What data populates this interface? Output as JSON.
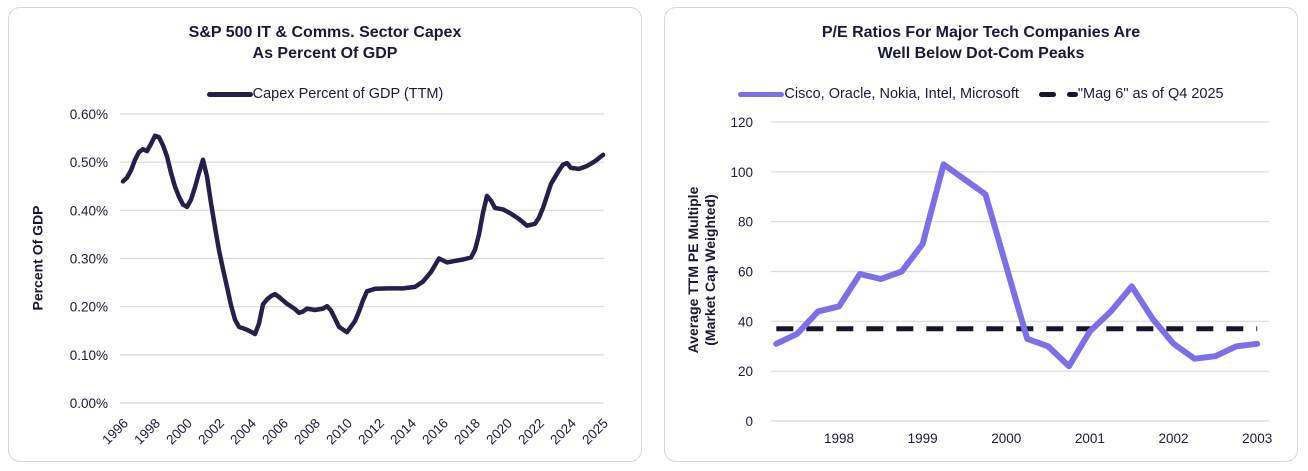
{
  "colors": {
    "navy_line": "#23214a",
    "purple_line": "#7d6ee9",
    "dashed_line": "#16152e",
    "text": "#1b1a3a",
    "gridline": "#d9d9d9",
    "card_border": "#d7d7dd",
    "card_background": "#ffffff"
  },
  "chart_data": [
    {
      "type": "line",
      "title_lines": [
        "S&P 500 IT & Comms. Sector Capex",
        "As Percent Of GDP"
      ],
      "title": "S&P 500 IT & Comms. Sector Capex As Percent Of GDP",
      "ylabel_lines": [
        "Percent Of GDP"
      ],
      "ylabel": "Percent Of GDP",
      "xlabel": "",
      "grid": true,
      "legend_position": "top",
      "ylim": [
        0,
        0.6
      ],
      "y_tick_labels": [
        "0.00%",
        "0.10%",
        "0.20%",
        "0.30%",
        "0.40%",
        "0.50%",
        "0.60%"
      ],
      "x_tick_labels": [
        "1996",
        "1998",
        "2000",
        "2002",
        "2004",
        "2006",
        "2008",
        "2010",
        "2012",
        "2014",
        "2016",
        "2018",
        "2020",
        "2022",
        "2024",
        "2025"
      ],
      "series": [
        {
          "name": "Capex Percent of GDP (TTM)",
          "color": "#23214a",
          "style": "solid",
          "points": [
            [
              1996,
              0.46
            ],
            [
              1996.25,
              0.468
            ],
            [
              1996.5,
              0.483
            ],
            [
              1996.75,
              0.505
            ],
            [
              1997,
              0.521
            ],
            [
              1997.25,
              0.527
            ],
            [
              1997.5,
              0.523
            ],
            [
              1997.75,
              0.538
            ],
            [
              1998,
              0.555
            ],
            [
              1998.25,
              0.552
            ],
            [
              1998.5,
              0.535
            ],
            [
              1998.75,
              0.512
            ],
            [
              1999,
              0.478
            ],
            [
              1999.25,
              0.449
            ],
            [
              1999.5,
              0.428
            ],
            [
              1999.75,
              0.412
            ],
            [
              2000,
              0.407
            ],
            [
              2000.25,
              0.422
            ],
            [
              2000.5,
              0.448
            ],
            [
              2000.75,
              0.478
            ],
            [
              2001,
              0.505
            ],
            [
              2001.25,
              0.47
            ],
            [
              2001.5,
              0.415
            ],
            [
              2001.75,
              0.365
            ],
            [
              2002,
              0.317
            ],
            [
              2002.25,
              0.278
            ],
            [
              2002.5,
              0.241
            ],
            [
              2002.75,
              0.203
            ],
            [
              2003,
              0.173
            ],
            [
              2003.25,
              0.158
            ],
            [
              2003.5,
              0.155
            ],
            [
              2003.75,
              0.152
            ],
            [
              2004,
              0.148
            ],
            [
              2004.25,
              0.143
            ],
            [
              2004.5,
              0.165
            ],
            [
              2004.75,
              0.205
            ],
            [
              2005,
              0.215
            ],
            [
              2005.25,
              0.222
            ],
            [
              2005.5,
              0.226
            ],
            [
              2005.75,
              0.22
            ],
            [
              2006.25,
              0.206
            ],
            [
              2006.75,
              0.195
            ],
            [
              2007,
              0.187
            ],
            [
              2007.25,
              0.19
            ],
            [
              2007.5,
              0.196
            ],
            [
              2008,
              0.193
            ],
            [
              2008.5,
              0.196
            ],
            [
              2008.75,
              0.201
            ],
            [
              2009,
              0.192
            ],
            [
              2009.25,
              0.175
            ],
            [
              2009.5,
              0.158
            ],
            [
              2010,
              0.147
            ],
            [
              2010.5,
              0.17
            ],
            [
              2010.75,
              0.19
            ],
            [
              2011,
              0.213
            ],
            [
              2011.25,
              0.232
            ],
            [
              2011.75,
              0.237
            ],
            [
              2012.5,
              0.238
            ],
            [
              2013.5,
              0.238
            ],
            [
              2014.25,
              0.241
            ],
            [
              2014.75,
              0.252
            ],
            [
              2015.25,
              0.272
            ],
            [
              2015.75,
              0.3
            ],
            [
              2016.25,
              0.292
            ],
            [
              2016.75,
              0.295
            ],
            [
              2017.25,
              0.298
            ],
            [
              2017.75,
              0.302
            ],
            [
              2018,
              0.318
            ],
            [
              2018.25,
              0.35
            ],
            [
              2018.5,
              0.395
            ],
            [
              2018.75,
              0.43
            ],
            [
              2019,
              0.42
            ],
            [
              2019.25,
              0.405
            ],
            [
              2019.75,
              0.402
            ],
            [
              2020.25,
              0.393
            ],
            [
              2020.75,
              0.382
            ],
            [
              2021.25,
              0.368
            ],
            [
              2021.75,
              0.372
            ],
            [
              2022,
              0.385
            ],
            [
              2022.25,
              0.405
            ],
            [
              2022.75,
              0.455
            ],
            [
              2023.25,
              0.483
            ],
            [
              2023.5,
              0.495
            ],
            [
              2023.75,
              0.498
            ],
            [
              2024,
              0.488
            ],
            [
              2024.25,
              0.486
            ],
            [
              2024.5,
              0.492
            ],
            [
              2024.75,
              0.502
            ],
            [
              2025,
              0.515
            ]
          ]
        }
      ]
    },
    {
      "type": "line",
      "title_lines": [
        "P/E Ratios For Major Tech Companies Are",
        "Well Below Dot-Com Peaks"
      ],
      "title": "P/E Ratios For Major Tech Companies Are Well Below Dot-Com Peaks",
      "ylabel_lines": [
        "Average TTM PE Multiple",
        "(Market Cap Weighted)"
      ],
      "ylabel": "Average TTM PE Multiple (Market Cap Weighted)",
      "xlabel": "",
      "grid": true,
      "legend_position": "top",
      "ylim": [
        0,
        120
      ],
      "y_tick_labels": [
        "0",
        "20",
        "40",
        "60",
        "80",
        "100",
        "120"
      ],
      "x_tick_labels": [
        "1998",
        "1999",
        "2000",
        "2001",
        "2002",
        "2003"
      ],
      "x_tick_years": [
        1998,
        1999,
        2000,
        2001,
        2002,
        2003
      ],
      "series": [
        {
          "name": "Cisco, Oracle, Nokia, Intel, Microsoft",
          "color": "#7d6ee9",
          "style": "solid",
          "points": [
            [
              1997.25,
              31
            ],
            [
              1997.5,
              35
            ],
            [
              1997.75,
              44
            ],
            [
              1998,
              46
            ],
            [
              1998.25,
              59
            ],
            [
              1998.5,
              57
            ],
            [
              1998.75,
              60
            ],
            [
              1999,
              71
            ],
            [
              1999.25,
              103
            ],
            [
              1999.5,
              97
            ],
            [
              1999.75,
              91
            ],
            [
              2000,
              62
            ],
            [
              2000.25,
              33
            ],
            [
              2000.5,
              30
            ],
            [
              2000.75,
              22
            ],
            [
              2001,
              36
            ],
            [
              2001.25,
              44
            ],
            [
              2001.5,
              54
            ],
            [
              2001.75,
              41
            ],
            [
              2002,
              31
            ],
            [
              2002.25,
              25
            ],
            [
              2002.5,
              26
            ],
            [
              2002.75,
              30
            ],
            [
              2003,
              31
            ]
          ]
        },
        {
          "name": "\"Mag 6\" as of Q4 2025",
          "color": "#16152e",
          "style": "dashed",
          "value": 37,
          "points": [
            [
              1997.25,
              37
            ],
            [
              2003,
              37
            ]
          ]
        }
      ]
    }
  ]
}
